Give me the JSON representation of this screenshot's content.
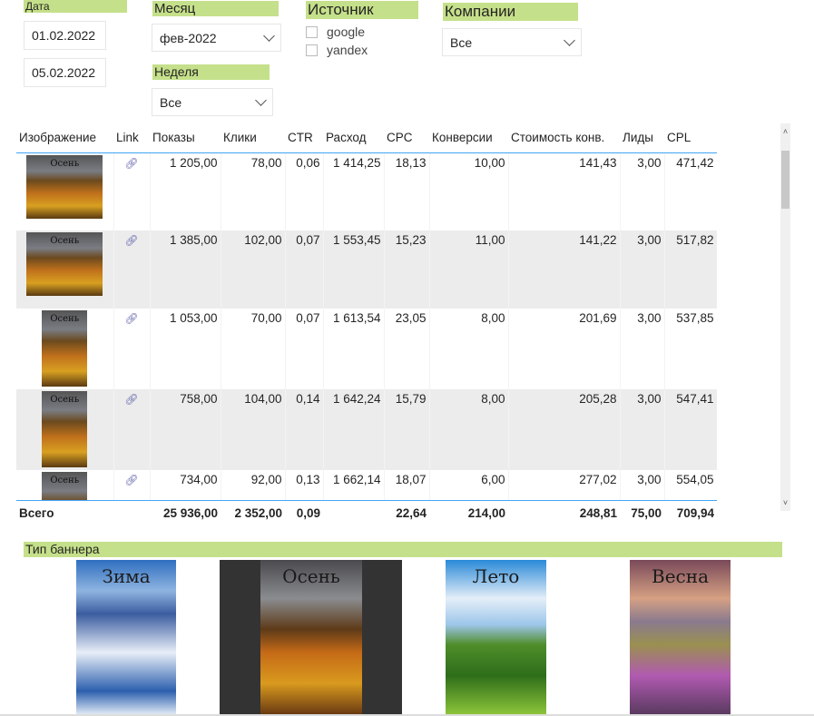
{
  "filters": {
    "date": {
      "label": "Дата",
      "from": "01.02.2022",
      "to": "05.02.2022"
    },
    "month": {
      "label": "Месяц",
      "value": "фев-2022"
    },
    "week": {
      "label": "Неделя",
      "value": "Все"
    },
    "source": {
      "label": "Источник",
      "options": [
        "google",
        "yandex"
      ]
    },
    "companies": {
      "label": "Компании",
      "value": "Все"
    }
  },
  "table": {
    "columns": [
      "Изображение",
      "Link",
      "Показы",
      "Клики",
      "CTR",
      "Расход",
      "CPC",
      "Конверсии",
      "Стоимость конв.",
      "Лиды",
      "CPL"
    ],
    "rows": [
      {
        "image": "Осень",
        "link": "link-icon",
        "cells": [
          "1 205,00",
          "78,00",
          "0,06",
          "1 414,25",
          "18,13",
          "10,00",
          "141,43",
          "3,00",
          "471,42"
        ]
      },
      {
        "image": "Осень",
        "link": "link-icon",
        "cells": [
          "1 385,00",
          "102,00",
          "0,07",
          "1 553,45",
          "15,23",
          "11,00",
          "141,22",
          "3,00",
          "517,82"
        ]
      },
      {
        "image": "Осень",
        "link": "link-icon",
        "cells": [
          "1 053,00",
          "70,00",
          "0,07",
          "1 613,54",
          "23,05",
          "8,00",
          "201,69",
          "3,00",
          "537,85"
        ]
      },
      {
        "image": "Осень",
        "link": "link-icon",
        "cells": [
          "758,00",
          "104,00",
          "0,14",
          "1 642,24",
          "15,79",
          "8,00",
          "205,28",
          "3,00",
          "547,41"
        ]
      },
      {
        "image": "Осень",
        "link": "link-icon",
        "cells": [
          "734,00",
          "92,00",
          "0,13",
          "1 662,14",
          "18,07",
          "6,00",
          "277,02",
          "3,00",
          "554,05"
        ]
      }
    ],
    "total": {
      "label": "Всего",
      "cells": [
        "25 936,00",
        "2 352,00",
        "0,09",
        "",
        "22,64",
        "214,00",
        "248,81",
        "75,00",
        "709,94"
      ]
    }
  },
  "banner_type": {
    "label": "Тип баннера",
    "items": [
      "Зима",
      "Осень",
      "Лето",
      "Весна"
    ]
  },
  "colors": {
    "header_bg": "#c5e08a",
    "accent": "#41a4f5",
    "row_alt": "#ececec"
  }
}
